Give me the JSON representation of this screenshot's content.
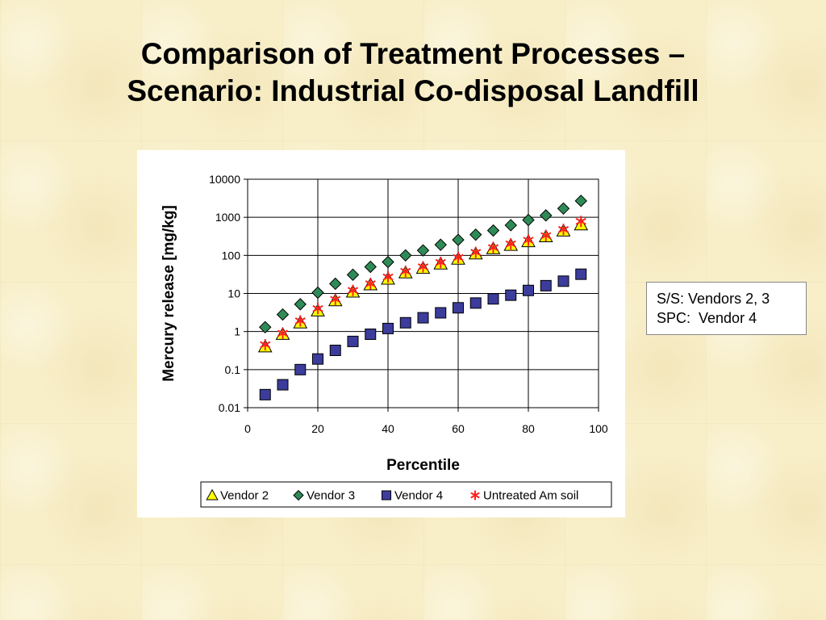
{
  "slide": {
    "title_lines": [
      "Comparison of Treatment Processes –",
      "Scenario: Industrial Co-disposal Landfill"
    ]
  },
  "note": {
    "lines": [
      "S/S: Vendors 2, 3",
      "SPC:  Vendor 4"
    ]
  },
  "chart_data": {
    "type": "scatter",
    "title": "",
    "xlabel": "Percentile",
    "ylabel": "Mercury release [mg/kg]",
    "xlim": [
      0,
      100
    ],
    "ylim": [
      0.01,
      10000
    ],
    "y_scale": "log",
    "x_ticks": [
      "0",
      "20",
      "40",
      "60",
      "80",
      "100"
    ],
    "y_ticks": [
      "0.01",
      "0.1",
      "1",
      "10",
      "100",
      "1000",
      "10000"
    ],
    "grid": true,
    "legend_position": "bottom",
    "series": [
      {
        "name": "Vendor 2",
        "marker": "triangle",
        "color": "#ffff00",
        "x": [
          5,
          10,
          15,
          20,
          25,
          30,
          35,
          40,
          45,
          50,
          55,
          60,
          65,
          70,
          75,
          80,
          85,
          90,
          95
        ],
        "y": [
          0.4,
          0.85,
          1.7,
          3.5,
          6.5,
          11,
          17,
          24,
          35,
          46,
          60,
          80,
          110,
          150,
          185,
          230,
          310,
          440,
          640
        ]
      },
      {
        "name": "Vendor 3",
        "marker": "diamond",
        "color": "#2e8b57",
        "x": [
          5,
          10,
          15,
          20,
          25,
          30,
          35,
          40,
          45,
          50,
          55,
          60,
          65,
          70,
          75,
          80,
          85,
          90,
          95
        ],
        "y": [
          1.3,
          2.8,
          5.2,
          10.5,
          18,
          31,
          50,
          67,
          100,
          135,
          190,
          255,
          350,
          450,
          620,
          850,
          1120,
          1700,
          2700
        ]
      },
      {
        "name": "Vendor 4",
        "marker": "square",
        "color": "#3c3c9c",
        "x": [
          5,
          10,
          15,
          20,
          25,
          30,
          35,
          40,
          45,
          50,
          55,
          60,
          65,
          70,
          75,
          80,
          85,
          90,
          95
        ],
        "y": [
          0.022,
          0.04,
          0.1,
          0.19,
          0.32,
          0.55,
          0.85,
          1.2,
          1.7,
          2.3,
          3.1,
          4.2,
          5.6,
          7.2,
          9,
          12,
          16,
          21,
          32
        ]
      },
      {
        "name": "Untreated Am soil",
        "marker": "asterisk",
        "color": "#ff2020",
        "x": [
          5,
          10,
          15,
          20,
          25,
          30,
          35,
          40,
          45,
          50,
          55,
          60,
          65,
          70,
          75,
          80,
          85,
          90,
          95
        ],
        "y": [
          0.45,
          0.9,
          1.9,
          4,
          7,
          12,
          18,
          27,
          38,
          50,
          65,
          88,
          120,
          160,
          200,
          250,
          330,
          480,
          780
        ]
      }
    ]
  }
}
